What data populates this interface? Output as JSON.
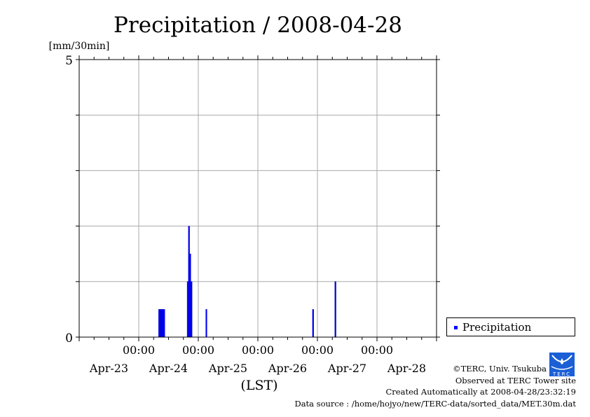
{
  "chart_data": {
    "type": "bar",
    "title": "Precipitation / 2008-04-28",
    "ylabel": "[mm/30min]",
    "xlabel": "(LST)",
    "ylim": [
      0,
      5
    ],
    "y_ticks": [
      "0",
      "5"
    ],
    "x_range_hours_from_Apr23_0000": [
      0,
      144
    ],
    "x_time_labels": [
      "00:00",
      "00:00",
      "00:00",
      "00:00",
      "00:00"
    ],
    "x_date_labels": [
      "Apr-23",
      "Apr-24",
      "Apr-25",
      "Apr-26",
      "Apr-27",
      "Apr-28"
    ],
    "bar_interval_hours": 0.5,
    "grid": true,
    "legend_position": "right-bottom",
    "series": [
      {
        "name": "Precipitation",
        "color": "#0000ff",
        "points": [
          {
            "hour": 32.0,
            "value": 0.5
          },
          {
            "hour": 32.5,
            "value": 0.5
          },
          {
            "hour": 33.0,
            "value": 0.5
          },
          {
            "hour": 33.5,
            "value": 0.5
          },
          {
            "hour": 34.0,
            "value": 0.5
          },
          {
            "hour": 43.5,
            "value": 1.0
          },
          {
            "hour": 44.0,
            "value": 2.0
          },
          {
            "hour": 44.5,
            "value": 1.5
          },
          {
            "hour": 45.0,
            "value": 1.0
          },
          {
            "hour": 51.0,
            "value": 0.5
          },
          {
            "hour": 94.0,
            "value": 0.5
          },
          {
            "hour": 103.0,
            "value": 1.0
          }
        ]
      }
    ]
  },
  "credits": {
    "copyright": "©TERC, Univ. Tsukuba",
    "observed": "Observed at TERC Tower site",
    "created": "Created Automatically at 2008-04-28/23:32:19",
    "source": "Data source : /home/hojyo/new/TERC-data/sorted_data/MET.30m.dat",
    "logo_text": "TERC"
  }
}
